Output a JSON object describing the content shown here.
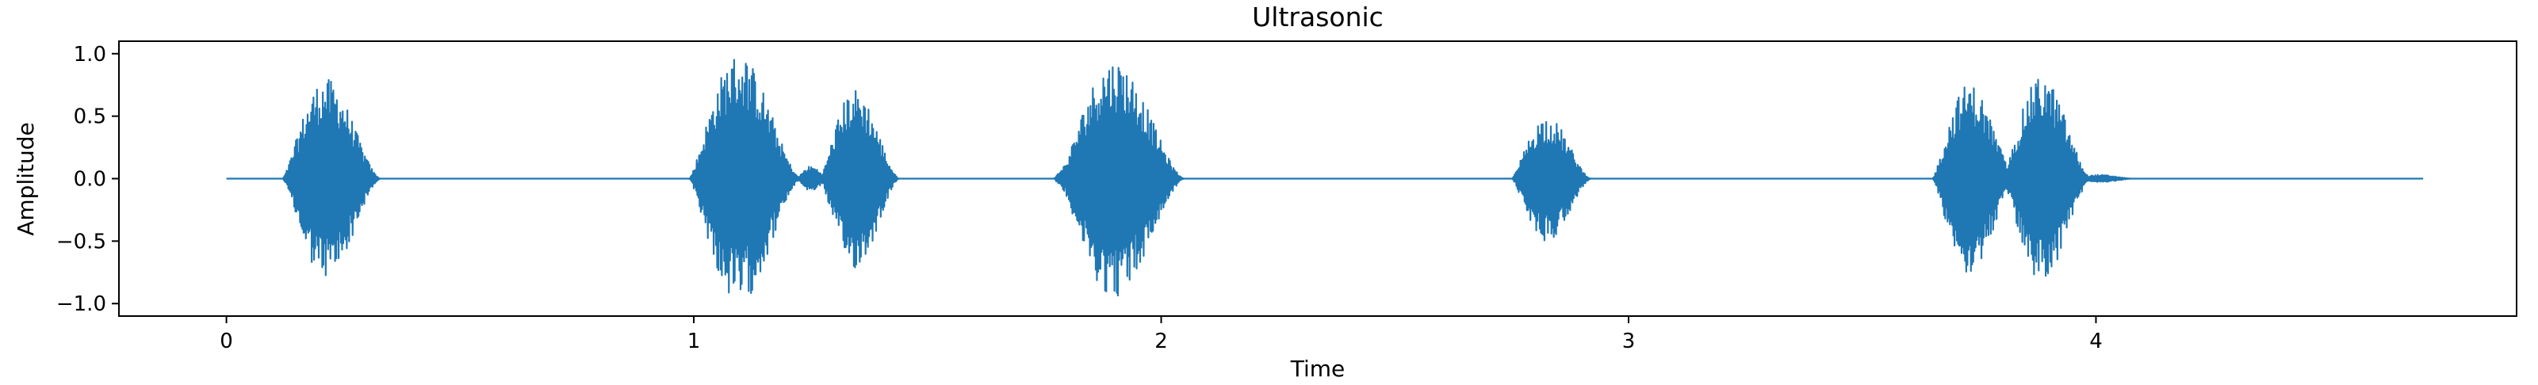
{
  "chart_data": {
    "type": "line",
    "title": "Ultrasonic",
    "xlabel": "Time",
    "ylabel": "Amplitude",
    "xlim": [
      -0.23,
      4.9
    ],
    "ylim": [
      -1.1,
      1.1
    ],
    "xticks": [
      0,
      1,
      2,
      3,
      4
    ],
    "xtick_labels": [
      "0",
      "1",
      "2",
      "3",
      "4"
    ],
    "yticks": [
      -1.0,
      -0.5,
      0.0,
      0.5,
      1.0
    ],
    "ytick_labels": [
      "−1.0",
      "−0.5",
      "0.0",
      "0.5",
      "1.0"
    ],
    "grid": false,
    "legend": "none",
    "series": [
      {
        "color": "#1f77b4",
        "duration": 4.7,
        "bursts": [
          {
            "start": 0.12,
            "end": 0.33,
            "amplitude": 0.8
          },
          {
            "start": 0.99,
            "end": 1.23,
            "amplitude": 1.0
          },
          {
            "start": 1.22,
            "end": 1.29,
            "amplitude": 0.1
          },
          {
            "start": 1.27,
            "end": 1.44,
            "amplitude": 0.72
          },
          {
            "start": 1.77,
            "end": 1.84,
            "amplitude": 0.12
          },
          {
            "start": 1.78,
            "end": 2.05,
            "amplitude": 0.95
          },
          {
            "start": 2.75,
            "end": 2.92,
            "amplitude": 0.5
          },
          {
            "start": 3.65,
            "end": 3.83,
            "amplitude": 0.76
          },
          {
            "start": 3.8,
            "end": 3.99,
            "amplitude": 0.82
          },
          {
            "start": 3.95,
            "end": 4.08,
            "amplitude": 0.03
          }
        ]
      }
    ]
  }
}
